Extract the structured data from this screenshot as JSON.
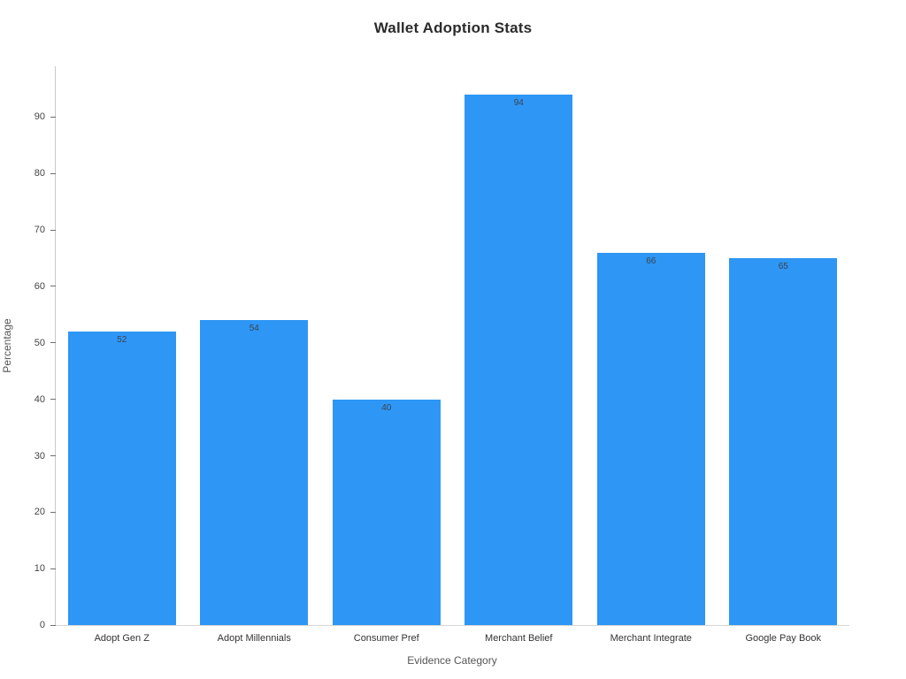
{
  "chart_data": {
    "type": "bar",
    "title": "Wallet Adoption Stats",
    "xlabel": "Evidence Category",
    "ylabel": "Percentage",
    "categories": [
      "Adopt Gen Z",
      "Adopt Millennials",
      "Consumer Pref",
      "Merchant Belief",
      "Merchant Integrate",
      "Google Pay Book"
    ],
    "values": [
      52,
      54,
      40,
      94,
      66,
      65
    ],
    "ylim": [
      0,
      99
    ],
    "yticks": [
      0,
      10,
      20,
      30,
      40,
      50,
      60,
      70,
      80,
      90
    ],
    "bar_color": "#2E96F5",
    "value_label_color": "#3b4451",
    "grid": false,
    "legend": "none"
  }
}
